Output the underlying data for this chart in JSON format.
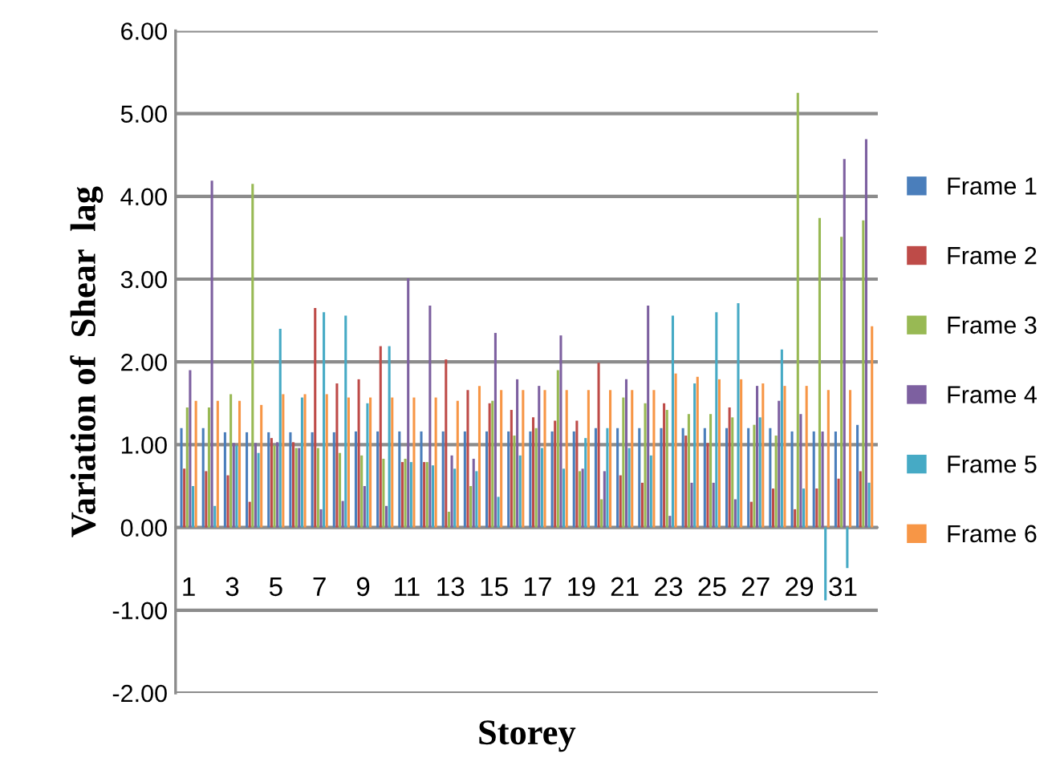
{
  "chart_data": {
    "type": "bar",
    "xlabel": "Storey",
    "ylabel": "Variation of  Shear  lag",
    "categories": [
      "1",
      null,
      "3",
      null,
      "5",
      null,
      "7",
      null,
      "9",
      null,
      "11",
      null,
      "13",
      null,
      "15",
      null,
      "17",
      null,
      "19",
      null,
      "21",
      null,
      "23",
      null,
      "25",
      null,
      "27",
      null,
      "29",
      null,
      "31",
      null
    ],
    "series": [
      {
        "name": "Frame 1",
        "color": "#4a7ebb",
        "values": [
          1.2,
          1.2,
          1.15,
          1.15,
          1.15,
          1.15,
          1.15,
          1.15,
          1.16,
          1.16,
          1.16,
          1.16,
          1.16,
          1.16,
          1.16,
          1.16,
          1.16,
          1.16,
          1.16,
          1.2,
          1.2,
          1.2,
          1.2,
          1.2,
          1.2,
          1.2,
          1.2,
          1.2,
          1.16,
          1.16,
          1.16,
          1.24
        ]
      },
      {
        "name": "Frame 2",
        "color": "#be4b48",
        "values": [
          0.71,
          0.68,
          0.63,
          0.31,
          1.08,
          1.03,
          2.65,
          1.74,
          1.79,
          2.19,
          0.79,
          0.79,
          2.03,
          1.66,
          1.5,
          1.42,
          1.33,
          1.29,
          1.29,
          1.99,
          0.63,
          0.54,
          1.5,
          1.11,
          1.02,
          1.45,
          0.31,
          0.47,
          0.22,
          0.47,
          0.59,
          0.68
        ]
      },
      {
        "name": "Frame 3",
        "color": "#98b954",
        "values": [
          1.45,
          1.45,
          1.61,
          4.15,
          0.99,
          0.96,
          0.96,
          0.9,
          0.87,
          0.83,
          0.83,
          0.79,
          0.19,
          0.5,
          1.53,
          1.11,
          1.2,
          1.9,
          0.68,
          0.34,
          1.57,
          1.5,
          1.42,
          1.37,
          1.37,
          1.33,
          1.24,
          1.11,
          5.25,
          3.74,
          3.51,
          3.71
        ]
      },
      {
        "name": "Frame 4",
        "color": "#7d60a0",
        "values": [
          1.9,
          4.19,
          1.02,
          1.02,
          1.03,
          0.96,
          0.22,
          0.32,
          0.5,
          0.26,
          3.01,
          2.68,
          0.87,
          0.83,
          2.35,
          1.79,
          1.71,
          2.32,
          0.71,
          0.68,
          1.79,
          2.68,
          0.14,
          0.54,
          0.54,
          0.34,
          1.71,
          1.53,
          1.37,
          1.16,
          4.45,
          4.69
        ]
      },
      {
        "name": "Frame 5",
        "color": "#46aac5",
        "values": [
          0.5,
          0.26,
          0.99,
          0.9,
          2.4,
          1.57,
          2.6,
          2.56,
          1.5,
          2.19,
          0.79,
          0.75,
          0.71,
          0.68,
          0.37,
          0.87,
          0.96,
          0.71,
          1.08,
          1.2,
          0.96,
          0.87,
          2.56,
          1.74,
          2.6,
          2.71,
          1.33,
          2.15,
          0.47,
          -0.88,
          -0.49,
          0.54
        ]
      },
      {
        "name": "Frame 6",
        "color": "#f79646",
        "values": [
          1.53,
          1.53,
          1.53,
          1.48,
          1.61,
          1.61,
          1.61,
          1.57,
          1.57,
          1.57,
          1.57,
          1.57,
          1.53,
          1.71,
          1.66,
          1.66,
          1.66,
          1.66,
          1.66,
          1.66,
          1.66,
          1.66,
          1.86,
          1.82,
          1.79,
          1.79,
          1.74,
          1.71,
          1.71,
          1.66,
          1.66,
          2.43
        ]
      }
    ],
    "ylim": [
      -2,
      6
    ],
    "yticks": [
      {
        "value": -2,
        "label": "-2.00"
      },
      {
        "value": -1,
        "label": "-1.00"
      },
      {
        "value": 0,
        "label": "0.00"
      },
      {
        "value": 1,
        "label": "1.00"
      },
      {
        "value": 2,
        "label": "2.00"
      },
      {
        "value": 3,
        "label": "3.00"
      },
      {
        "value": 4,
        "label": "4.00"
      },
      {
        "value": 5,
        "label": "5.00"
      },
      {
        "value": 6,
        "label": "6.00"
      }
    ],
    "grid": "y",
    "legend": "right"
  }
}
